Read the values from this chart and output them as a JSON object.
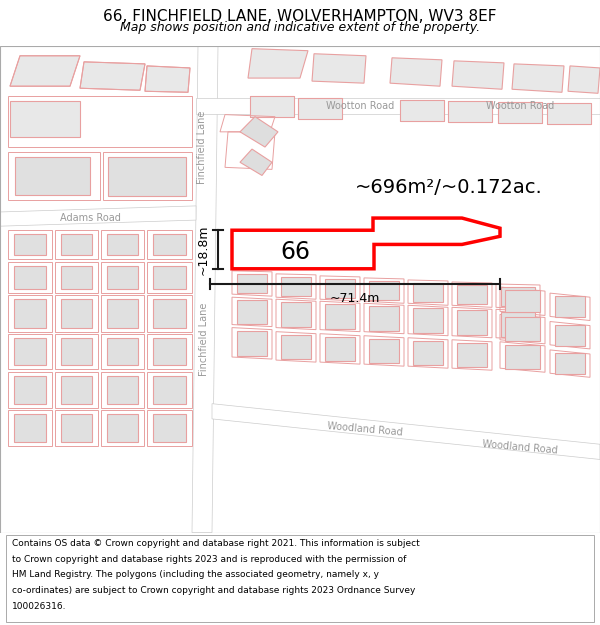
{
  "title": "66, FINCHFIELD LANE, WOLVERHAMPTON, WV3 8EF",
  "subtitle": "Map shows position and indicative extent of the property.",
  "footer_lines": [
    "Contains OS data © Crown copyright and database right 2021. This information is subject",
    "to Crown copyright and database rights 2023 and is reproduced with the permission of",
    "HM Land Registry. The polygons (including the associated geometry, namely x, y",
    "co-ordinates) are subject to Crown copyright and database rights 2023 Ordnance Survey",
    "100026316."
  ],
  "area_label": "~696m²/~0.172ac.",
  "width_label": "~71.4m",
  "height_label": "~18.8m",
  "property_number": "66",
  "bg_color": "#f0f0f0",
  "road_color": "#ffffff",
  "building_fill": "#e0e0e0",
  "building_stroke": "#e8a0a0",
  "plot_stroke": "#e8a0a0",
  "highlight_red": "#ff0000",
  "road_label_color": "#999999",
  "dim_color": "#1a1a1a",
  "title_fs": 11,
  "subtitle_fs": 9,
  "area_fs": 14,
  "num_fs": 17,
  "road_fs": 7,
  "dim_fs": 9,
  "footer_fs": 6.5
}
